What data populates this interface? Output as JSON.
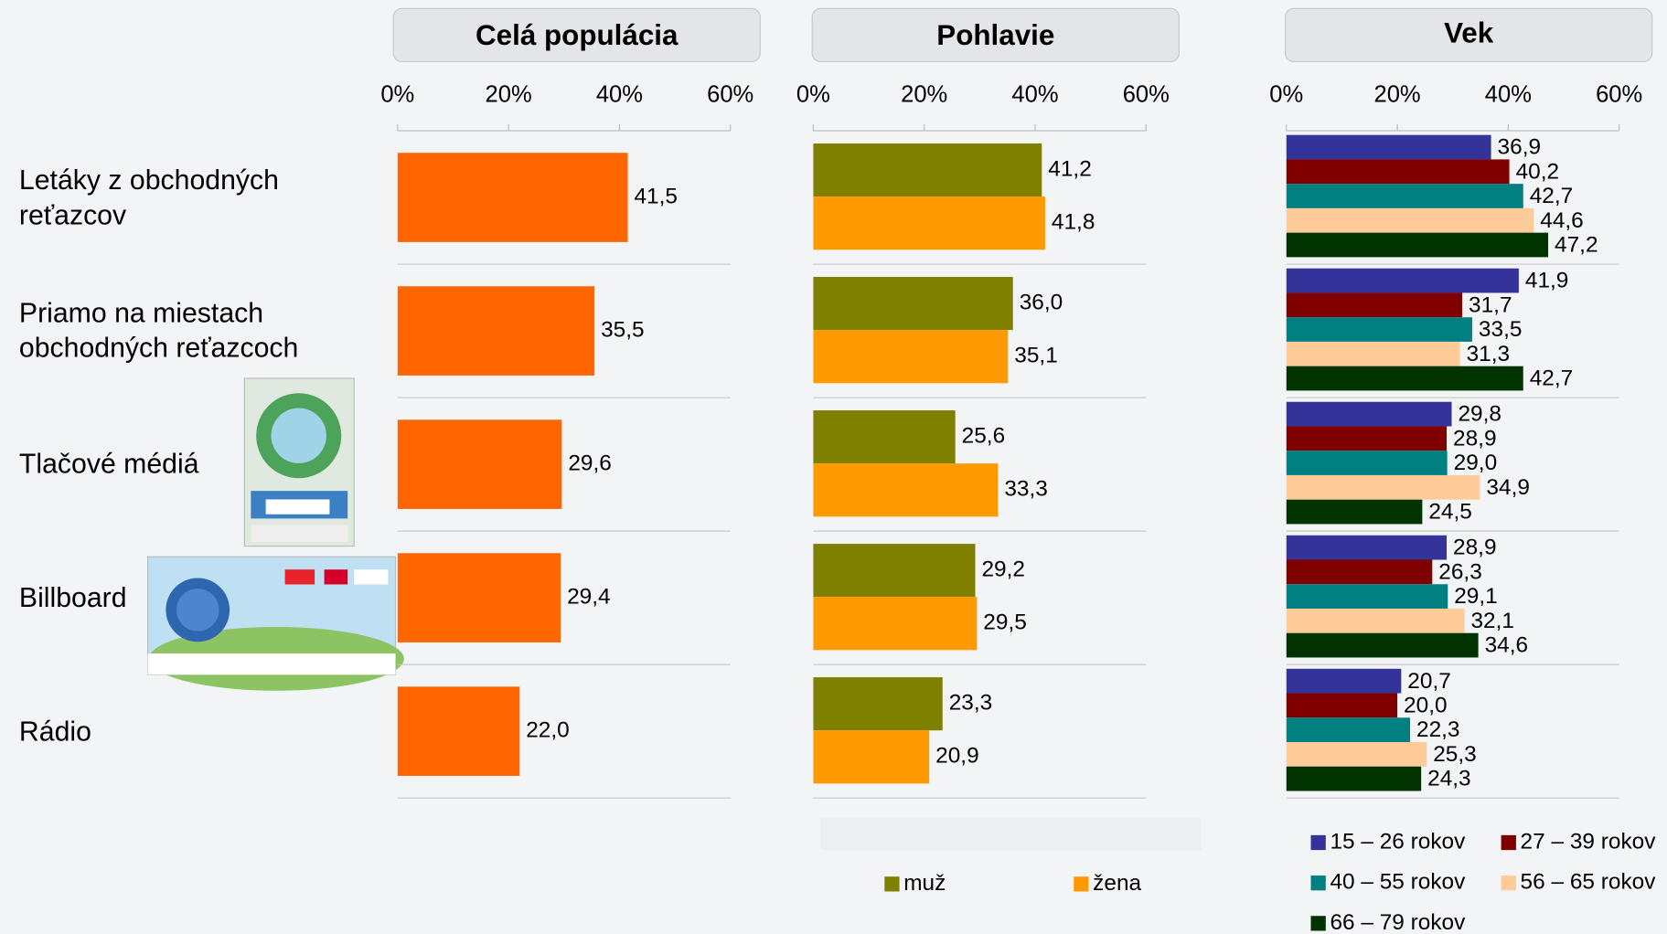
{
  "chart_data": [
    {
      "type": "bar",
      "title": "Celá populácia",
      "categories": [
        "Letáky z obchodných reťazcov",
        "Priamo na miestach obchodných reťazcoch",
        "Tlačové médiá",
        "Billboard",
        "Rádio"
      ],
      "values": [
        41.5,
        35.5,
        29.6,
        29.4,
        22.0
      ],
      "value_labels": [
        "41,5",
        "35,5",
        "29,6",
        "29,4",
        "22,0"
      ],
      "color": "#ff6600",
      "xlim": [
        0,
        60
      ],
      "xticks": [
        {
          "value": 0,
          "label": "0%"
        },
        {
          "value": 20,
          "label": "20%"
        },
        {
          "value": 40,
          "label": "40%"
        },
        {
          "value": 60,
          "label": "60%"
        }
      ]
    },
    {
      "type": "bar",
      "title": "Pohlavie",
      "series": [
        {
          "name": "muž",
          "color": "#808000",
          "values": [
            41.2,
            36.0,
            25.6,
            29.2,
            23.3
          ],
          "value_labels": [
            "41,2",
            "36,0",
            "25,6",
            "29,2",
            "23,3"
          ]
        },
        {
          "name": "žena",
          "color": "#ff9900",
          "values": [
            41.8,
            35.1,
            33.3,
            29.5,
            20.9
          ],
          "value_labels": [
            "41,8",
            "35,1",
            "33,3",
            "29,5",
            "20,9"
          ]
        }
      ],
      "xlim": [
        0,
        60
      ],
      "xticks": [
        {
          "value": 0,
          "label": "0%"
        },
        {
          "value": 20,
          "label": "20%"
        },
        {
          "value": 40,
          "label": "40%"
        },
        {
          "value": 60,
          "label": "60%"
        }
      ]
    },
    {
      "type": "bar",
      "title": "Vek",
      "series": [
        {
          "name": "15 – 26 rokov",
          "color": "#333399",
          "values": [
            36.9,
            41.9,
            29.8,
            28.9,
            20.7
          ],
          "value_labels": [
            "36,9",
            "41,9",
            "29,8",
            "28,9",
            "20,7"
          ]
        },
        {
          "name": "27 – 39 rokov",
          "color": "#800000",
          "values": [
            40.2,
            31.7,
            28.9,
            26.3,
            20.0
          ],
          "value_labels": [
            "40,2",
            "31,7",
            "28,9",
            "26,3",
            "20,0"
          ]
        },
        {
          "name": "40 – 55 rokov",
          "color": "#008080",
          "values": [
            42.7,
            33.5,
            29.0,
            29.1,
            22.3
          ],
          "value_labels": [
            "42,7",
            "33,5",
            "29,0",
            "29,1",
            "22,3"
          ]
        },
        {
          "name": "56 – 65 rokov",
          "color": "#ffcc99",
          "values": [
            44.6,
            31.3,
            34.9,
            32.1,
            25.3
          ],
          "value_labels": [
            "44,6",
            "31,3",
            "34,9",
            "32,1",
            "25,3"
          ]
        },
        {
          "name": "66 – 79 rokov",
          "color": "#003300",
          "values": [
            47.2,
            42.7,
            24.5,
            34.6,
            24.3
          ],
          "value_labels": [
            "47,2",
            "42,7",
            "24,5",
            "34,6",
            "24,3"
          ]
        }
      ],
      "xlim": [
        0,
        60
      ],
      "xticks": [
        {
          "value": 0,
          "label": "0%"
        },
        {
          "value": 20,
          "label": "20%"
        },
        {
          "value": 40,
          "label": "40%"
        },
        {
          "value": 60,
          "label": "60%"
        }
      ]
    }
  ]
}
